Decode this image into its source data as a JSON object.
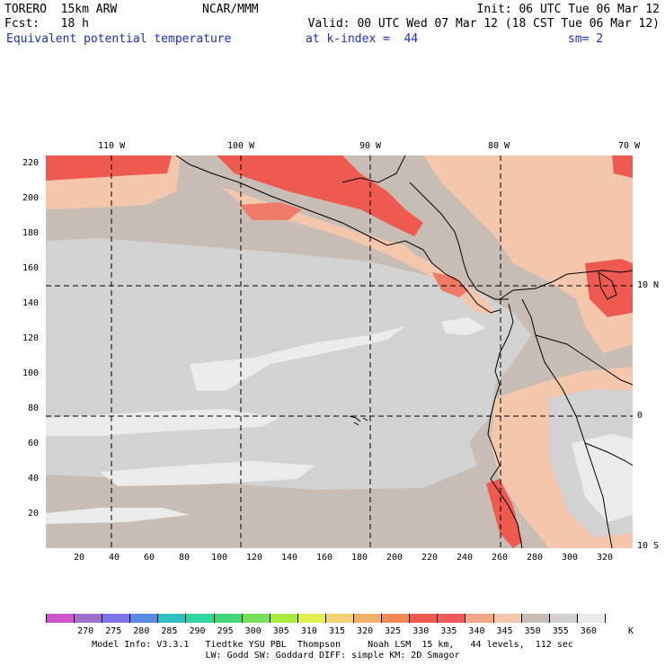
{
  "header": {
    "model_name": "TORERO  15km ARW",
    "center": "NCAR/MMM",
    "init": "Init: 06 UTC Tue 06 Mar 12",
    "fcst": "Fcst:   18 h",
    "valid": "Valid: 00 UTC Wed 07 Mar 12 (18 CST Tue 06 Mar 12)",
    "field": "Equivalent potential temperature",
    "level": "at k-index =  44",
    "smooth": "sm= 2"
  },
  "map": {
    "top_lon_labels": [
      "110 W",
      "100 W",
      "90 W",
      "80 W",
      "70 W"
    ],
    "right_lat_labels": [
      "10 N",
      "0",
      "10 S"
    ],
    "x_grid_labels": [
      "20",
      "40",
      "60",
      "80",
      "100",
      "120",
      "140",
      "160",
      "180",
      "200",
      "220",
      "240",
      "260",
      "280",
      "300",
      "320"
    ],
    "y_grid_labels": [
      "20",
      "40",
      "60",
      "80",
      "100",
      "120",
      "140",
      "160",
      "180",
      "200",
      "220"
    ],
    "colors": {
      "background": "#c8bdb5",
      "gray_light": "#d2d2d2",
      "gray_pale": "#ebebeb",
      "salmon": "#f4c7ad",
      "salmon_mid": "#f4a688",
      "red_light": "#f07a68",
      "red": "#ee5a50",
      "coast": "#000000"
    }
  },
  "colorbar": {
    "colors": [
      "#cc55cc",
      "#a070cc",
      "#7f74e8",
      "#5a8ae8",
      "#2fc1c1",
      "#2fd7a0",
      "#44d777",
      "#77e05a",
      "#a8ec3c",
      "#e0ee52",
      "#f4d074",
      "#f4ae6a",
      "#f28a56",
      "#ee5a4e",
      "#ee5a5a",
      "#f4a688",
      "#f4c7ad",
      "#c8bdb5",
      "#d2d2d2",
      "#ebebeb",
      "#ffffff"
    ],
    "labels": [
      "270",
      "275",
      "280",
      "285",
      "290",
      "295",
      "300",
      "305",
      "310",
      "315",
      "320",
      "325",
      "330",
      "335",
      "340",
      "345",
      "350",
      "355",
      "360"
    ],
    "unit": "K"
  },
  "footer": {
    "line1": "Model Info: V3.3.1   Tiedtke YSU PBL  Thompson     Noah LSM  15 km,   44 levels,  112 sec",
    "line2": "LW: Godd SW: Goddard DIFF: simple KM: 2D Smagor"
  }
}
